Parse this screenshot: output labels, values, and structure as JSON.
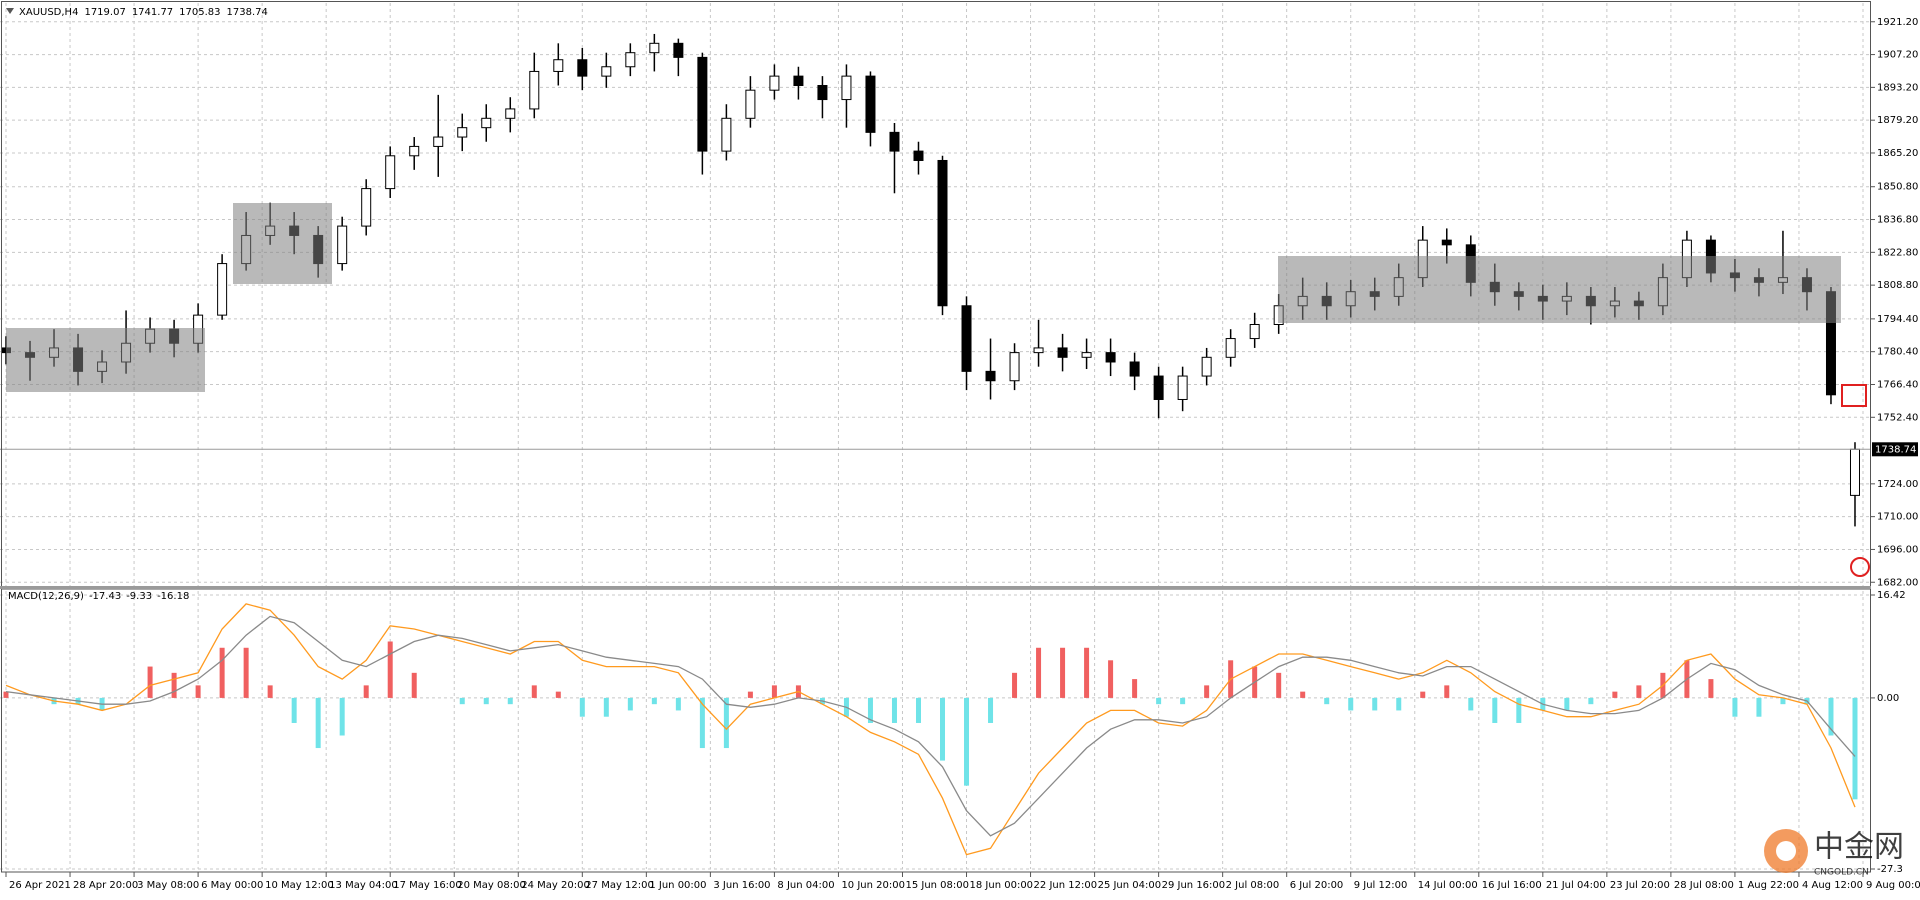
{
  "chart_data": [
    {
      "type": "candlestick",
      "title": "XAUUSD,H4",
      "x": [
        0,
        6,
        12,
        18,
        24,
        30,
        36,
        42,
        48,
        54,
        60,
        66,
        72,
        78,
        84,
        90,
        96,
        102,
        108,
        114,
        120,
        126,
        132,
        138,
        144,
        150,
        156,
        162,
        168,
        174,
        180,
        186,
        192,
        198,
        204,
        210,
        216,
        222,
        228,
        234,
        240,
        246,
        252,
        258,
        264,
        270,
        276,
        282,
        288,
        294,
        300,
        306,
        312,
        318,
        324,
        330,
        336,
        342,
        348,
        354,
        360,
        366,
        372,
        378,
        384,
        390,
        396,
        402,
        408,
        414,
        420,
        426,
        432,
        438,
        444,
        450,
        456,
        462
      ],
      "open": [
        1782,
        1780,
        1778,
        1782,
        1772,
        1776,
        1784,
        1790,
        1784,
        1796,
        1818,
        1830,
        1834,
        1830,
        1818,
        1834,
        1850,
        1864,
        1868,
        1872,
        1876,
        1880,
        1884,
        1900,
        1905,
        1898,
        1902,
        1908,
        1912,
        1906,
        1866,
        1880,
        1892,
        1898,
        1894,
        1888,
        1898,
        1874,
        1866,
        1862,
        1800,
        1772,
        1768,
        1780,
        1782,
        1778,
        1780,
        1776,
        1770,
        1760,
        1770,
        1778,
        1786,
        1792,
        1800,
        1804,
        1800,
        1806,
        1804,
        1812,
        1828,
        1826,
        1810,
        1806,
        1804,
        1802,
        1804,
        1800,
        1802,
        1800,
        1812,
        1828,
        1814,
        1812,
        1810,
        1812,
        1806,
        1719.07
      ],
      "high": [
        1787,
        1785,
        1790,
        1788,
        1781,
        1798,
        1795,
        1794,
        1801,
        1822,
        1840,
        1844,
        1840,
        1834,
        1838,
        1854,
        1868,
        1872,
        1890,
        1882,
        1886,
        1889,
        1908,
        1912,
        1910,
        1908,
        1912,
        1916,
        1914,
        1908,
        1886,
        1898,
        1903,
        1902,
        1898,
        1903,
        1900,
        1878,
        1870,
        1864,
        1804,
        1786,
        1784,
        1794,
        1788,
        1786,
        1786,
        1780,
        1774,
        1774,
        1782,
        1790,
        1797,
        1805,
        1812,
        1810,
        1811,
        1812,
        1818,
        1834,
        1833,
        1830,
        1818,
        1810,
        1809,
        1810,
        1808,
        1808,
        1806,
        1818,
        1832,
        1830,
        1820,
        1816,
        1832,
        1816,
        1808,
        1741.77
      ],
      "low": [
        1775,
        1768,
        1774,
        1766,
        1767,
        1771,
        1780,
        1778,
        1780,
        1794,
        1815,
        1826,
        1822,
        1812,
        1815,
        1830,
        1846,
        1858,
        1855,
        1866,
        1870,
        1874,
        1880,
        1894,
        1892,
        1893,
        1898,
        1900,
        1898,
        1856,
        1862,
        1876,
        1888,
        1888,
        1880,
        1876,
        1868,
        1848,
        1856,
        1796,
        1764,
        1760,
        1764,
        1774,
        1772,
        1773,
        1770,
        1764,
        1752,
        1755,
        1766,
        1774,
        1782,
        1788,
        1794,
        1794,
        1795,
        1798,
        1800,
        1808,
        1818,
        1804,
        1800,
        1798,
        1794,
        1796,
        1792,
        1795,
        1794,
        1796,
        1808,
        1810,
        1806,
        1804,
        1805,
        1798,
        1758,
        1705.83
      ],
      "close": [
        1780,
        1778,
        1782,
        1772,
        1776,
        1784,
        1790,
        1784,
        1796,
        1818,
        1830,
        1834,
        1830,
        1818,
        1834,
        1850,
        1864,
        1868,
        1872,
        1876,
        1880,
        1884,
        1900,
        1905,
        1898,
        1902,
        1908,
        1912,
        1906,
        1866,
        1880,
        1892,
        1898,
        1894,
        1888,
        1898,
        1874,
        1866,
        1862,
        1800,
        1772,
        1768,
        1780,
        1782,
        1778,
        1780,
        1776,
        1770,
        1760,
        1770,
        1778,
        1786,
        1792,
        1800,
        1804,
        1800,
        1806,
        1804,
        1812,
        1828,
        1826,
        1810,
        1806,
        1804,
        1802,
        1804,
        1800,
        1802,
        1800,
        1812,
        1828,
        1814,
        1812,
        1810,
        1812,
        1806,
        1762,
        1738.74
      ],
      "up_color": "#ffffff",
      "down_color": "#000000",
      "wick_color": "#000000",
      "xlim": [
        -1.5,
        466
      ],
      "xticks": [
        {
          "value": 0,
          "label": "26 Apr 2021"
        },
        {
          "value": 16,
          "label": "28 Apr 20:00"
        },
        {
          "value": 32,
          "label": "3 May 08:00"
        },
        {
          "value": 48,
          "label": "6 May 00:00"
        },
        {
          "value": 64,
          "label": "10 May 12:00"
        },
        {
          "value": 80,
          "label": "13 May 04:00"
        },
        {
          "value": 96,
          "label": "17 May 16:00"
        },
        {
          "value": 112,
          "label": "20 May 08:00"
        },
        {
          "value": 128,
          "label": "24 May 20:00"
        },
        {
          "value": 144,
          "label": "27 May 12:00"
        },
        {
          "value": 160,
          "label": "1 Jun 00:00"
        },
        {
          "value": 176,
          "label": "3 Jun 16:00"
        },
        {
          "value": 192,
          "label": "8 Jun 04:00"
        },
        {
          "value": 208,
          "label": "10 Jun 20:00"
        },
        {
          "value": 224,
          "label": "15 Jun 08:00"
        },
        {
          "value": 240,
          "label": "18 Jun 00:00"
        },
        {
          "value": 256,
          "label": "22 Jun 12:00"
        },
        {
          "value": 272,
          "label": "25 Jun 04:00"
        },
        {
          "value": 288,
          "label": "29 Jun 16:00"
        },
        {
          "value": 304,
          "label": "2 Jul 08:00"
        },
        {
          "value": 320,
          "label": "6 Jul 20:00"
        },
        {
          "value": 336,
          "label": "9 Jul 12:00"
        },
        {
          "value": 352,
          "label": "14 Jul 00:00"
        },
        {
          "value": 368,
          "label": "16 Jul 16:00"
        },
        {
          "value": 384,
          "label": "21 Jul 04:00"
        },
        {
          "value": 400,
          "label": "23 Jul 20:00"
        },
        {
          "value": 416,
          "label": "28 Jul 08:00"
        },
        {
          "value": 432,
          "label": "1 Aug 22:00"
        },
        {
          "value": 448,
          "label": "4 Aug 12:00"
        },
        {
          "value": 464,
          "label": "9 Aug 00:00"
        }
      ],
      "ylim": [
        1680.4,
        1927.5
      ],
      "yticks": [
        {
          "value": 1921.2,
          "label": "1921.20"
        },
        {
          "value": 1907.2,
          "label": "1907.20"
        },
        {
          "value": 1893.2,
          "label": "1893.20"
        },
        {
          "value": 1879.2,
          "label": "1879.20"
        },
        {
          "value": 1865.2,
          "label": "1865.20"
        },
        {
          "value": 1850.8,
          "label": "1850.80"
        },
        {
          "value": 1836.8,
          "label": "1836.80"
        },
        {
          "value": 1822.8,
          "label": "1822.80"
        },
        {
          "value": 1808.8,
          "label": "1808.80"
        },
        {
          "value": 1794.4,
          "label": "1794.40"
        },
        {
          "value": 1780.4,
          "label": "1780.40"
        },
        {
          "value": 1766.4,
          "label": "1766.40"
        },
        {
          "value": 1752.4,
          "label": "1752.40"
        },
        {
          "value": 1724,
          "label": "1724.00"
        },
        {
          "value": 1710,
          "label": "1710.00"
        },
        {
          "value": 1696,
          "label": "1696.00"
        },
        {
          "value": 1682,
          "label": "1682.00"
        }
      ],
      "grid": true
    },
    {
      "type": "macd",
      "title": "MACD(12,26,9)",
      "x": [
        0,
        6,
        12,
        18,
        24,
        30,
        36,
        42,
        48,
        54,
        60,
        66,
        72,
        78,
        84,
        90,
        96,
        102,
        108,
        114,
        120,
        126,
        132,
        138,
        144,
        150,
        156,
        162,
        168,
        174,
        180,
        186,
        192,
        198,
        204,
        210,
        216,
        222,
        228,
        234,
        240,
        246,
        252,
        258,
        264,
        270,
        276,
        282,
        288,
        294,
        300,
        306,
        312,
        318,
        324,
        330,
        336,
        342,
        348,
        354,
        360,
        366,
        372,
        378,
        384,
        390,
        396,
        402,
        408,
        414,
        420,
        426,
        432,
        438,
        444,
        450,
        456,
        462
      ],
      "lines": [
        {
          "color": "#ff9a1f",
          "values": [
            2,
            0.5,
            -0.5,
            -1,
            -2,
            -1,
            2,
            3,
            4,
            11,
            15,
            14,
            10,
            5,
            3,
            6,
            11.5,
            11,
            10,
            9,
            8,
            7,
            9,
            9,
            6,
            5,
            5,
            5,
            4,
            -1,
            -5,
            -1,
            0,
            1,
            -1,
            -3,
            -5.5,
            -7,
            -9,
            -16,
            -25,
            -24,
            -18,
            -12,
            -8,
            -4,
            -2,
            -2,
            -4,
            -4.5,
            -2,
            3,
            5,
            7,
            7,
            6,
            5,
            4,
            3,
            4,
            6,
            4,
            1,
            -1,
            -2,
            -3,
            -3,
            -2,
            -1,
            2,
            6,
            7,
            3,
            0.5,
            0,
            -1,
            -8,
            -17.43
          ]
        },
        {
          "color": "#8a8a8a",
          "values": [
            1,
            0.5,
            0,
            -0.5,
            -1,
            -1,
            -0.5,
            1,
            3,
            6,
            10,
            13,
            12,
            9,
            6,
            5,
            7,
            9,
            10,
            9.5,
            8.5,
            7.5,
            8,
            8.5,
            7.5,
            6.5,
            6,
            5.5,
            5,
            3,
            -1,
            -1.5,
            -1,
            0,
            -0.5,
            -1.5,
            -3.5,
            -5,
            -7,
            -11,
            -18,
            -22,
            -20,
            -16,
            -12,
            -8,
            -5,
            -3.5,
            -3.5,
            -4,
            -3,
            0,
            2.5,
            5,
            6.5,
            6.5,
            6,
            5,
            4,
            3.5,
            5,
            5,
            3,
            1,
            -1,
            -2,
            -2.5,
            -2.5,
            -2,
            0,
            3,
            5.5,
            4.5,
            2,
            0.5,
            -0.5,
            -5,
            -9.33
          ]
        }
      ],
      "histogram": {
        "up_color": "#f06060",
        "down_color": "#6fe3e8",
        "values": [
          1,
          0,
          -1,
          -1,
          -2,
          0,
          5,
          4,
          2,
          8,
          8,
          2,
          -4,
          -8,
          -6,
          2,
          9,
          4,
          0,
          -1,
          -1,
          -1,
          2,
          1,
          -3,
          -3,
          -2,
          -1,
          -2,
          -8,
          -8,
          1,
          2,
          2,
          -1,
          -3,
          -4,
          -4,
          -4,
          -10,
          -14,
          -4,
          4,
          8,
          8,
          8,
          6,
          3,
          -1,
          -1,
          2,
          6,
          5,
          4,
          1,
          -1,
          -2,
          -2,
          -2,
          1,
          2,
          -2,
          -4,
          -4,
          -2,
          -2,
          -1,
          1,
          2,
          4,
          6,
          3,
          -3,
          -3,
          -1,
          -1,
          -6,
          -16.18
        ]
      },
      "ylim": [
        -27.3,
        16.42
      ],
      "yticks": [
        16.42,
        {
          "value": 0,
          "label": "0.00"
        },
        -27.3
      ],
      "grid": true
    }
  ],
  "watermark": {
    "text": "中金网",
    "sub": "CNGOLD.CN"
  }
}
